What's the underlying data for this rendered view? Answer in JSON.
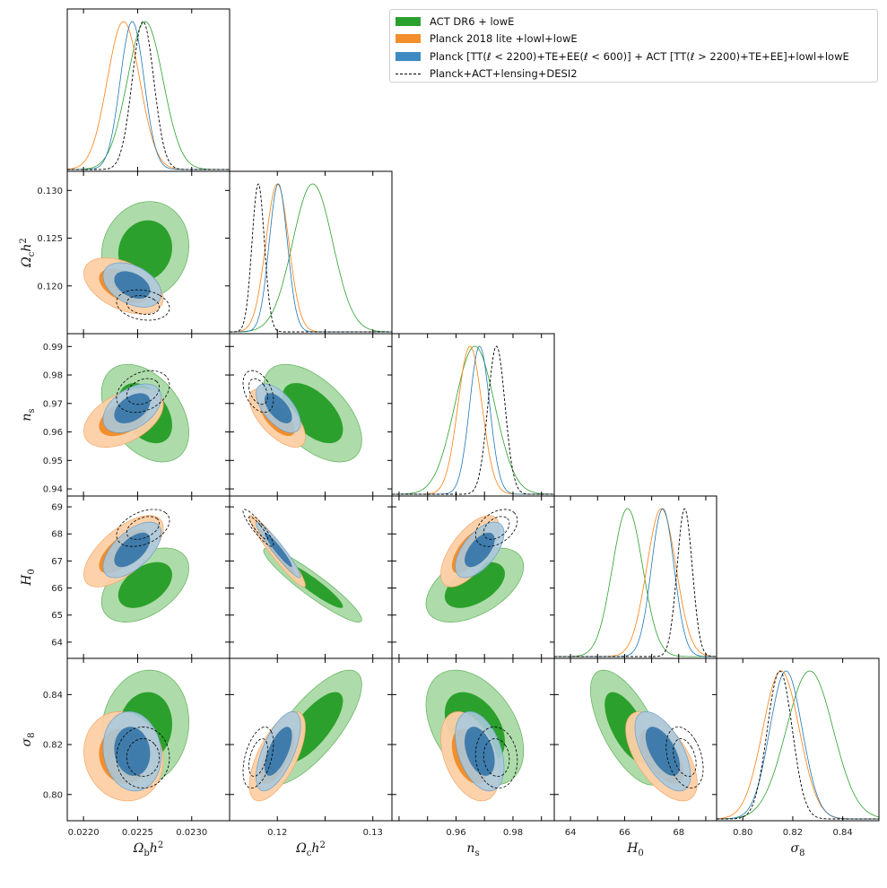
{
  "chart_data": {
    "type": "triangle-corner-plot",
    "parameters": [
      {
        "key": "ombh2",
        "label": "Ωbh²",
        "range": [
          0.02185,
          0.02335
        ],
        "ticks": [
          0.022,
          0.0225,
          0.023
        ],
        "tick_labels": [
          "0.0220",
          "0.0225",
          "0.0230"
        ]
      },
      {
        "key": "omch2",
        "label": "Ωch²",
        "range": [
          0.115,
          0.132
        ],
        "ticks": [
          0.12,
          0.125,
          0.13
        ],
        "tick_labels": [
          "0.120",
          "0.125",
          "0.130"
        ],
        "bottom_tick_labels": [
          "0.12",
          "",
          "0.13"
        ]
      },
      {
        "key": "ns",
        "label": "ns",
        "range": [
          0.9375,
          0.9945
        ],
        "ticks": [
          0.94,
          0.95,
          0.96,
          0.97,
          0.98,
          0.99
        ],
        "tick_labels": [
          "0.94",
          "0.95",
          "0.96",
          "0.97",
          "0.98",
          "0.99"
        ],
        "bottom_tick_labels": [
          "",
          "",
          "0.96",
          "",
          "0.98",
          ""
        ]
      },
      {
        "key": "H0",
        "label": "H0",
        "range": [
          63.4,
          69.4
        ],
        "ticks": [
          64,
          65,
          66,
          67,
          68,
          69
        ],
        "tick_labels": [
          "64",
          "65",
          "66",
          "67",
          "68",
          "69"
        ],
        "bottom_tick_labels": [
          "64",
          "",
          "66",
          "",
          "68",
          ""
        ]
      },
      {
        "key": "sigma8",
        "label": "σ8",
        "range": [
          0.7895,
          0.8545
        ],
        "ticks": [
          0.8,
          0.82,
          0.84
        ],
        "tick_labels": [
          "0.80",
          "0.82",
          "0.84"
        ]
      }
    ],
    "series": [
      {
        "name": "ACT DR6 + lowE",
        "color": "#2ca02c",
        "style": "filled",
        "means": [
          0.02257,
          0.1237,
          0.9666,
          66.11,
          0.8268
        ],
        "sigmas": [
          0.000165,
          0.0021,
          0.007,
          0.56,
          0.0094
        ],
        "correlations": {
          "0-1": 0.1,
          "0-2": -0.4,
          "0-3": 0.45,
          "0-4": 0.1,
          "1-2": -0.55,
          "1-3": -0.93,
          "1-4": 0.75,
          "2-3": 0.5,
          "2-4": -0.4,
          "3-4": -0.65
        }
      },
      {
        "name": "Planck 2018 lite +lowl+lowE",
        "color": "#ff7f0e",
        "style": "filled",
        "means": [
          0.02237,
          0.12,
          0.9649,
          67.36,
          0.8153
        ],
        "sigmas": [
          0.00015,
          0.0012,
          0.0042,
          0.54,
          0.0073
        ],
        "correlations": {
          "0-1": -0.45,
          "0-2": 0.45,
          "0-3": 0.65,
          "0-4": -0.1,
          "1-2": -0.65,
          "1-3": -0.95,
          "1-4": 0.65,
          "2-3": 0.65,
          "2-4": -0.4,
          "3-4": -0.6
        }
      },
      {
        "name": "Planck [TT(ℓ < 2200)+TE+EE(ℓ < 600)] + ACT [TT(ℓ > 2200)+TE+EE]+lowl+lowE",
        "color": "#1f77b4",
        "style": "filled",
        "means": [
          0.02245,
          0.1201,
          0.9683,
          67.41,
          0.8173
        ],
        "sigmas": [
          0.00011,
          0.00095,
          0.0035,
          0.42,
          0.0065
        ],
        "correlations": {
          "0-1": -0.4,
          "0-2": 0.45,
          "0-3": 0.6,
          "0-4": -0.1,
          "1-2": -0.6,
          "1-3": -0.95,
          "1-4": 0.65,
          "2-3": 0.6,
          "2-4": -0.4,
          "3-4": -0.6
        }
      },
      {
        "name": "Planck+ACT+lensing+DESI2",
        "color": "#000000",
        "style": "dashed",
        "means": [
          0.02255,
          0.118,
          0.9742,
          68.22,
          0.8148
        ],
        "sigmas": [
          0.0001,
          0.00065,
          0.003,
          0.28,
          0.005
        ],
        "correlations": {
          "0-1": -0.2,
          "0-2": 0.3,
          "0-3": 0.4,
          "0-4": 0.0,
          "1-2": -0.4,
          "1-3": -0.9,
          "1-4": 0.45,
          "2-3": 0.4,
          "2-4": -0.1,
          "3-4": -0.35
        }
      }
    ],
    "legend_position": "top-right",
    "contour_levels": [
      "68%",
      "95%"
    ]
  }
}
